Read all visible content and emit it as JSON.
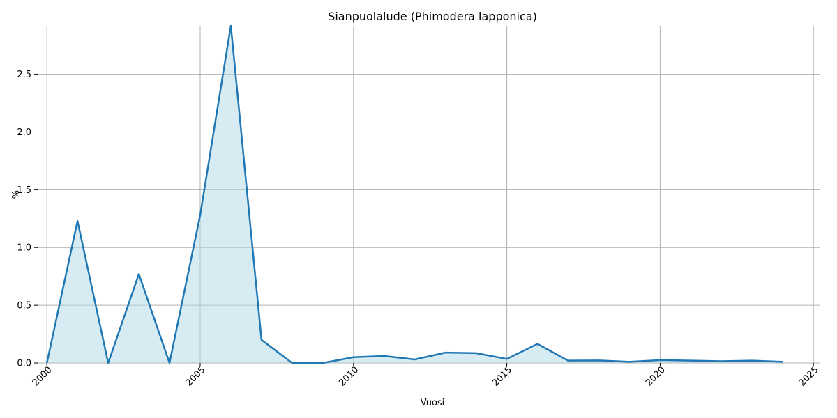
{
  "chart_data": {
    "type": "area",
    "title": "Sianpuolalude (Phimodera lapponica)",
    "xlabel": "Vuosi",
    "ylabel": "%",
    "x": [
      2000,
      2001,
      2002,
      2003,
      2004,
      2005,
      2006,
      2007,
      2008,
      2009,
      2010,
      2011,
      2012,
      2013,
      2014,
      2015,
      2016,
      2017,
      2018,
      2019,
      2020,
      2021,
      2022,
      2023,
      2024
    ],
    "values": [
      0.0,
      1.23,
      0.0,
      0.77,
      0.0,
      1.28,
      2.92,
      0.2,
      0.0,
      0.0,
      0.05,
      0.06,
      0.03,
      0.09,
      0.085,
      0.035,
      0.165,
      0.02,
      0.022,
      0.01,
      0.025,
      0.02,
      0.015,
      0.02,
      0.01
    ],
    "xlim": [
      1999.7,
      2025.2
    ],
    "ylim": [
      0,
      2.92
    ],
    "xticks": [
      "2000",
      "2005",
      "2010",
      "2015",
      "2020",
      "2025"
    ],
    "yticks": [
      "0.0",
      "0.5",
      "1.0",
      "1.5",
      "2.0",
      "2.5"
    ],
    "grid": true,
    "line_color": "#1f77b4",
    "fill_color": "#add8e6"
  }
}
